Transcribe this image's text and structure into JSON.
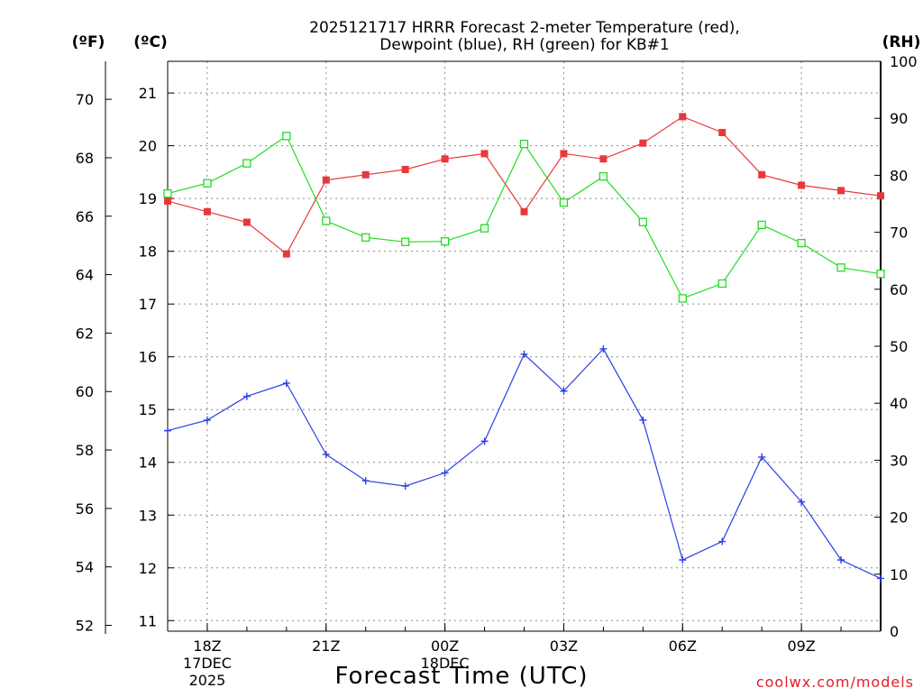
{
  "chart_data": {
    "type": "line",
    "title": [
      "2025121717 HRRR Forecast 2-meter Temperature (red),",
      "Dewpoint (blue), RH (green) for KB#1"
    ],
    "xlabel": "Forecast Time (UTC)",
    "credit": "coolwx.com/models",
    "x": [
      "17Z",
      "18Z",
      "19Z",
      "20Z",
      "21Z",
      "22Z",
      "23Z",
      "00Z",
      "01Z",
      "02Z",
      "03Z",
      "04Z",
      "05Z",
      "06Z",
      "07Z",
      "08Z",
      "09Z",
      "10Z",
      "11Z"
    ],
    "x_ticks": [
      {
        "label": "18Z",
        "date": "17DEC",
        "year": "2025"
      },
      {
        "label": "21Z"
      },
      {
        "label": "00Z",
        "date": "18DEC"
      },
      {
        "label": "03Z"
      },
      {
        "label": "06Z"
      },
      {
        "label": "09Z"
      }
    ],
    "axes": {
      "fahrenheit": {
        "unit": "(ºF)",
        "range": [
          51.8,
          71.3
        ],
        "ticks": [
          "52",
          "54",
          "56",
          "58",
          "60",
          "62",
          "64",
          "66",
          "68",
          "70"
        ]
      },
      "celsius": {
        "unit": "(ºC)",
        "range": [
          10.8,
          21.6
        ],
        "ticks": [
          "11",
          "12",
          "13",
          "14",
          "15",
          "16",
          "17",
          "18",
          "19",
          "20",
          "21"
        ]
      },
      "rh": {
        "unit": "(RH)",
        "range": [
          0,
          100
        ],
        "ticks": [
          "0",
          "10",
          "20",
          "30",
          "40",
          "50",
          "60",
          "70",
          "80",
          "90",
          "100"
        ]
      }
    },
    "grid": true,
    "series": [
      {
        "key": "temperature",
        "axis": "celsius",
        "color": "#e8383a",
        "marker": "filled-square",
        "values": [
          18.95,
          18.75,
          18.55,
          17.95,
          19.35,
          19.45,
          19.55,
          19.75,
          19.85,
          18.75,
          19.85,
          19.75,
          20.05,
          20.55,
          20.25,
          19.45,
          19.25,
          19.15,
          19.05
        ]
      },
      {
        "key": "dewpoint",
        "axis": "celsius",
        "color": "#2a3fe8",
        "marker": "plus",
        "values": [
          14.6,
          14.8,
          15.25,
          15.5,
          14.15,
          13.65,
          13.55,
          13.8,
          14.4,
          16.05,
          15.35,
          16.15,
          14.8,
          12.15,
          12.5,
          14.1,
          13.25,
          12.15,
          11.8
        ]
      },
      {
        "key": "rh",
        "axis": "rh",
        "color": "#22dd22",
        "marker": "open-square",
        "values": [
          76.8,
          78.6,
          82.1,
          86.9,
          72.0,
          69.1,
          68.3,
          68.4,
          70.7,
          85.5,
          75.2,
          79.8,
          71.8,
          58.4,
          61.0,
          71.3,
          68.1,
          63.8,
          62.7
        ]
      }
    ]
  }
}
